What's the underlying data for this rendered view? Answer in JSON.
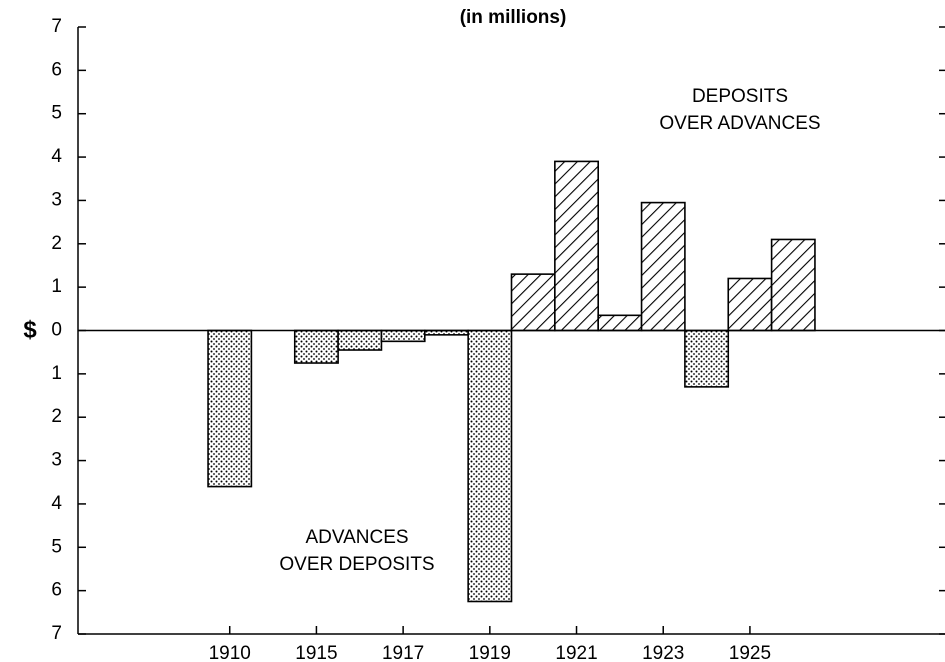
{
  "chart_data": {
    "type": "bar",
    "title": "(in millions)",
    "y_label": "$",
    "annotations": [
      {
        "lines": [
          "DEPOSITS",
          "OVER ADVANCES"
        ]
      },
      {
        "lines": [
          "ADVANCES",
          "OVER DEPOSITS"
        ]
      }
    ],
    "categories": [
      null,
      null,
      null,
      "1910",
      null,
      "1915",
      null,
      "1917",
      null,
      "1919",
      null,
      "1921",
      null,
      "1923",
      null,
      "1925",
      null,
      null,
      null,
      null
    ],
    "values": [
      null,
      null,
      null,
      -3.6,
      null,
      -0.75,
      -0.45,
      -0.25,
      -0.1,
      -6.25,
      1.3,
      3.9,
      0.35,
      2.95,
      -1.3,
      1.2,
      2.1,
      null,
      null,
      null
    ],
    "color": "#000000",
    "patterns": {
      "positive": "diagonal-hatch",
      "negative": "dots"
    },
    "ylim": [
      -7,
      7
    ],
    "yticks": [
      {
        "value": -7,
        "label": "7"
      },
      {
        "value": -6,
        "label": "6"
      },
      {
        "value": -5,
        "label": "5"
      },
      {
        "value": -4,
        "label": "4"
      },
      {
        "value": -3,
        "label": "3"
      },
      {
        "value": -2,
        "label": "2"
      },
      {
        "value": -1,
        "label": "1"
      },
      0,
      1,
      2,
      3,
      4,
      5,
      6,
      7
    ],
    "grid": false
  }
}
